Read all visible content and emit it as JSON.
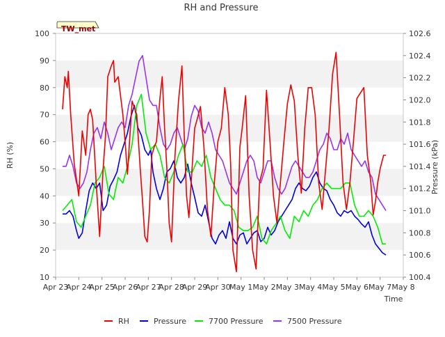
{
  "chart_data": {
    "type": "line",
    "title": "RH and Pressure",
    "badge": "TW_met",
    "xlabel": "Time",
    "ylabel_left": "RH (%)",
    "ylabel_right": "Pressure (kPa)",
    "x_ticks": [
      "Apr 23",
      "Apr 24",
      "Apr 25",
      "Apr 26",
      "Apr 27",
      "Apr 28",
      "Apr 29",
      "Apr 30",
      "May 1",
      "May 2",
      "May 3",
      "May 4",
      "May 5",
      "May 6",
      "May 7",
      "May 8"
    ],
    "xlim": [
      0,
      15
    ],
    "ylim_left": [
      10,
      100
    ],
    "left_ticks": [
      10,
      20,
      30,
      40,
      50,
      60,
      70,
      80,
      90,
      100
    ],
    "ylim_right": [
      100.4,
      102.6
    ],
    "right_ticks": [
      "100.4",
      "100.6",
      "100.8",
      "101.0",
      "101.2",
      "101.4",
      "101.6",
      "101.8",
      "102.0",
      "102.2",
      "102.4",
      "102.6"
    ],
    "grid": "horizontal bands",
    "legend_position": "bottom",
    "colors": {
      "RH": "#ee0000",
      "Pressure": "#0000dd",
      "7700 Pressure": "#00ee00",
      "7500 Pressure": "#9933ee"
    },
    "series": [
      {
        "name": "RH",
        "axis": "left",
        "color": "#ee0000",
        "x": [
          0.3,
          0.4,
          0.5,
          0.55,
          0.6,
          0.65,
          0.8,
          1.0,
          1.15,
          1.3,
          1.4,
          1.5,
          1.6,
          1.75,
          1.9,
          2.05,
          2.15,
          2.25,
          2.4,
          2.5,
          2.55,
          2.7,
          2.9,
          3.0,
          3.1,
          3.3,
          3.5,
          3.65,
          3.75,
          3.85,
          3.95,
          4.05,
          4.15,
          4.25,
          4.35,
          4.5,
          4.6,
          4.7,
          4.8,
          4.9,
          5.0,
          5.15,
          5.3,
          5.45,
          5.55,
          5.65,
          5.75,
          5.9,
          6.0,
          6.1,
          6.25,
          6.4,
          6.55,
          6.7,
          6.85,
          7.0,
          7.15,
          7.3,
          7.45,
          7.55,
          7.65,
          7.8,
          7.95,
          8.05,
          8.2,
          8.35,
          8.5,
          8.65,
          8.8,
          8.95,
          9.1,
          9.25,
          9.4,
          9.55,
          9.7,
          9.85,
          10.0,
          10.15,
          10.3,
          10.45,
          10.6,
          10.75,
          10.9,
          11.05,
          11.2,
          11.35,
          11.5,
          11.65,
          11.8,
          11.95,
          12.1,
          12.25,
          12.4,
          12.55,
          12.7,
          12.85,
          13.0,
          13.15,
          13.3,
          13.45,
          13.6,
          13.7,
          13.8,
          13.9,
          14.0,
          14.15,
          14.25
        ],
        "values": [
          72,
          84,
          80,
          86,
          78,
          70,
          52,
          40,
          64,
          55,
          70,
          72,
          68,
          45,
          25,
          50,
          62,
          84,
          88,
          90,
          82,
          84,
          70,
          60,
          48,
          75,
          70,
          50,
          38,
          25,
          23,
          35,
          55,
          58,
          60,
          76,
          84,
          65,
          50,
          30,
          23,
          55,
          75,
          88,
          62,
          40,
          32,
          52,
          65,
          68,
          73,
          58,
          35,
          25,
          45,
          60,
          65,
          80,
          70,
          52,
          20,
          12,
          58,
          65,
          77,
          40,
          20,
          13,
          45,
          50,
          79,
          60,
          40,
          30,
          45,
          60,
          74,
          81,
          75,
          55,
          41,
          65,
          80,
          80,
          70,
          45,
          35,
          50,
          65,
          85,
          93,
          70,
          45,
          35,
          45,
          60,
          76,
          78,
          80,
          55,
          45,
          33,
          38,
          45,
          50,
          55,
          55
        ]
      },
      {
        "name": "Pressure",
        "axis": "right",
        "color": "#0000dd",
        "x": [
          0.3,
          0.45,
          0.6,
          0.75,
          0.9,
          1.0,
          1.15,
          1.3,
          1.45,
          1.6,
          1.75,
          1.9,
          2.05,
          2.2,
          2.35,
          2.5,
          2.65,
          2.8,
          2.95,
          3.1,
          3.25,
          3.4,
          3.55,
          3.7,
          3.85,
          4.0,
          4.1,
          4.2,
          4.35,
          4.5,
          4.65,
          4.8,
          4.95,
          5.1,
          5.25,
          5.4,
          5.55,
          5.7,
          5.85,
          6.0,
          6.15,
          6.3,
          6.45,
          6.6,
          6.75,
          6.9,
          7.05,
          7.2,
          7.35,
          7.5,
          7.65,
          7.8,
          7.95,
          8.1,
          8.25,
          8.4,
          8.55,
          8.7,
          8.85,
          9.0,
          9.15,
          9.3,
          9.45,
          9.6,
          9.75,
          9.9,
          10.05,
          10.2,
          10.35,
          10.5,
          10.65,
          10.8,
          10.95,
          11.1,
          11.25,
          11.4,
          11.55,
          11.7,
          11.85,
          12.0,
          12.15,
          12.3,
          12.45,
          12.6,
          12.75,
          12.9,
          13.05,
          13.2,
          13.35,
          13.5,
          13.65,
          13.8,
          13.95,
          14.1,
          14.25
        ],
        "values": [
          100.97,
          100.97,
          101.0,
          100.95,
          100.82,
          100.75,
          100.8,
          101.0,
          101.18,
          101.25,
          101.2,
          101.25,
          101.0,
          101.05,
          101.22,
          101.28,
          101.35,
          101.5,
          101.6,
          101.7,
          101.85,
          101.95,
          101.75,
          101.68,
          101.55,
          101.5,
          101.55,
          101.35,
          101.2,
          101.1,
          101.2,
          101.35,
          101.38,
          101.45,
          101.3,
          101.25,
          101.3,
          101.42,
          101.25,
          101.12,
          100.98,
          100.95,
          101.05,
          100.9,
          100.75,
          100.7,
          100.78,
          100.82,
          100.75,
          100.9,
          100.75,
          100.7,
          100.78,
          100.8,
          100.7,
          100.75,
          100.8,
          100.82,
          100.72,
          100.75,
          100.85,
          100.78,
          100.82,
          100.9,
          100.95,
          101.0,
          101.05,
          101.1,
          101.2,
          101.25,
          101.2,
          101.18,
          101.22,
          101.3,
          101.35,
          101.25,
          101.2,
          101.18,
          101.1,
          101.05,
          100.98,
          100.95,
          101.0,
          100.98,
          101.0,
          100.95,
          100.92,
          100.88,
          100.85,
          100.9,
          100.78,
          100.7,
          100.66,
          100.62,
          100.6
        ]
      },
      {
        "name": "7700 Pressure",
        "axis": "right",
        "color": "#00ee00",
        "x": [
          0.3,
          0.5,
          0.7,
          0.9,
          1.1,
          1.3,
          1.5,
          1.7,
          1.9,
          2.1,
          2.3,
          2.5,
          2.7,
          2.9,
          3.1,
          3.3,
          3.5,
          3.7,
          3.9,
          4.1,
          4.3,
          4.5,
          4.7,
          4.9,
          5.1,
          5.3,
          5.5,
          5.7,
          5.9,
          6.1,
          6.3,
          6.5,
          6.7,
          6.9,
          7.1,
          7.3,
          7.5,
          7.7,
          7.9,
          8.1,
          8.3,
          8.5,
          8.7,
          8.9,
          9.1,
          9.3,
          9.5,
          9.7,
          9.9,
          10.1,
          10.3,
          10.5,
          10.7,
          10.9,
          11.1,
          11.3,
          11.5,
          11.7,
          11.9,
          12.1,
          12.3,
          12.5,
          12.7,
          12.9,
          13.1,
          13.3,
          13.5,
          13.7,
          13.9,
          14.1,
          14.25
        ],
        "values": [
          101.0,
          101.05,
          101.1,
          100.9,
          100.85,
          100.95,
          101.05,
          101.25,
          101.3,
          101.4,
          101.15,
          101.1,
          101.3,
          101.25,
          101.4,
          101.6,
          101.95,
          102.05,
          101.7,
          101.55,
          101.6,
          101.5,
          101.3,
          101.25,
          101.35,
          101.5,
          101.6,
          101.35,
          101.35,
          101.45,
          101.4,
          101.5,
          101.3,
          101.2,
          101.1,
          101.05,
          101.05,
          101.0,
          100.85,
          100.82,
          100.82,
          100.85,
          100.95,
          100.75,
          100.7,
          100.82,
          100.88,
          100.95,
          100.82,
          100.75,
          100.95,
          100.9,
          101.0,
          100.95,
          101.05,
          101.1,
          101.2,
          101.25,
          101.2,
          101.2,
          101.2,
          101.25,
          101.25,
          101.05,
          100.95,
          100.95,
          101.0,
          100.95,
          100.85,
          100.7,
          100.7
        ]
      },
      {
        "name": "7500 Pressure",
        "axis": "right",
        "color": "#9933ee",
        "x": [
          0.3,
          0.45,
          0.6,
          0.75,
          0.9,
          1.05,
          1.2,
          1.35,
          1.5,
          1.65,
          1.8,
          1.95,
          2.1,
          2.25,
          2.4,
          2.55,
          2.7,
          2.85,
          3.0,
          3.15,
          3.3,
          3.45,
          3.6,
          3.75,
          3.9,
          4.05,
          4.2,
          4.35,
          4.5,
          4.65,
          4.8,
          4.95,
          5.1,
          5.25,
          5.4,
          5.55,
          5.7,
          5.85,
          6.0,
          6.15,
          6.3,
          6.45,
          6.6,
          6.75,
          6.9,
          7.05,
          7.2,
          7.35,
          7.5,
          7.65,
          7.8,
          7.95,
          8.1,
          8.25,
          8.4,
          8.55,
          8.7,
          8.85,
          9.0,
          9.15,
          9.3,
          9.45,
          9.6,
          9.75,
          9.9,
          10.05,
          10.2,
          10.35,
          10.5,
          10.65,
          10.8,
          10.95,
          11.1,
          11.25,
          11.4,
          11.55,
          11.7,
          11.85,
          12.0,
          12.15,
          12.3,
          12.45,
          12.6,
          12.75,
          12.9,
          13.05,
          13.2,
          13.35,
          13.5,
          13.65,
          13.8,
          13.95,
          14.1,
          14.25
        ],
        "values": [
          101.4,
          101.4,
          101.5,
          101.4,
          101.25,
          101.2,
          101.25,
          101.35,
          101.55,
          101.7,
          101.75,
          101.65,
          101.8,
          101.7,
          101.55,
          101.65,
          101.75,
          101.8,
          101.75,
          101.95,
          102.05,
          102.2,
          102.35,
          102.4,
          102.2,
          102.0,
          101.95,
          101.95,
          101.75,
          101.6,
          101.55,
          101.6,
          101.7,
          101.75,
          101.65,
          101.55,
          101.65,
          101.85,
          101.95,
          101.9,
          101.75,
          101.7,
          101.8,
          101.7,
          101.55,
          101.5,
          101.45,
          101.35,
          101.25,
          101.2,
          101.15,
          101.25,
          101.35,
          101.45,
          101.5,
          101.45,
          101.3,
          101.25,
          101.35,
          101.45,
          101.45,
          101.3,
          101.2,
          101.15,
          101.2,
          101.3,
          101.4,
          101.45,
          101.4,
          101.35,
          101.3,
          101.3,
          101.35,
          101.45,
          101.55,
          101.6,
          101.7,
          101.65,
          101.55,
          101.55,
          101.65,
          101.6,
          101.7,
          101.55,
          101.5,
          101.45,
          101.4,
          101.45,
          101.35,
          101.3,
          101.15,
          101.1,
          101.05,
          101.0
        ]
      }
    ]
  }
}
